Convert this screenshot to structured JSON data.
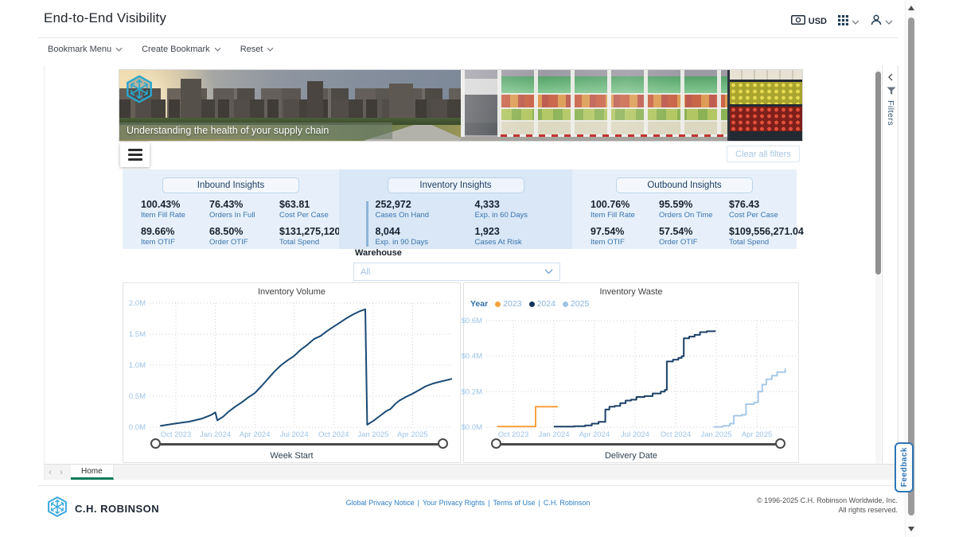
{
  "header": {
    "title": "End-to-End Visibility",
    "currency": "USD"
  },
  "toolbar": {
    "items": [
      "Bookmark Menu",
      "Create Bookmark",
      "Reset"
    ]
  },
  "banner": {
    "caption": "Understanding the health of your supply chain"
  },
  "controls": {
    "clear_filters": "Clear all filters"
  },
  "insights": {
    "inbound": {
      "title": "Inbound Insights",
      "metrics": [
        {
          "value": "100.43%",
          "label": "Item Fill Rate"
        },
        {
          "value": "76.43%",
          "label": "Orders In Full"
        },
        {
          "value": "$63.81",
          "label": "Cost Per Case"
        },
        {
          "value": "89.66%",
          "label": "Item OTIF"
        },
        {
          "value": "68.50%",
          "label": "Order OTIF"
        },
        {
          "value": "$131,275,120.00",
          "label": "Total Spend"
        }
      ]
    },
    "inventory": {
      "title": "Inventory Insights",
      "metrics": [
        {
          "value": "252,972",
          "label": "Cases On Hand"
        },
        {
          "value": "4,333",
          "label": "Exp. in 60 Days"
        },
        {
          "value": "8,044",
          "label": "Exp. in 90 Days"
        },
        {
          "value": "1,923",
          "label": "Cases At Risk"
        }
      ]
    },
    "outbound": {
      "title": "Outbound Insights",
      "metrics": [
        {
          "value": "100.76%",
          "label": "Item Fill Rate"
        },
        {
          "value": "95.59%",
          "label": "Orders On Time"
        },
        {
          "value": "$76.43",
          "label": "Cost Per Case"
        },
        {
          "value": "97.54%",
          "label": "Item OTIF"
        },
        {
          "value": "57.54%",
          "label": "Order OTIF"
        },
        {
          "value": "$109,556,271.04",
          "label": "Total Spend"
        }
      ]
    }
  },
  "warehouse": {
    "label": "Warehouse",
    "value": "All"
  },
  "chart_data": [
    {
      "type": "line",
      "title": "Inventory Volume",
      "xlabel": "Week Start",
      "ylabel": "",
      "x_unit_note": "x = months since Aug 2023",
      "xlim": [
        0,
        23
      ],
      "ylim": [
        0,
        2
      ],
      "x_ticks": [
        "Oct 2023",
        "Jan 2024",
        "Apr 2024",
        "Jul 2024",
        "Oct 2024",
        "Jan 2025",
        "Apr 2025"
      ],
      "x_tick_values": [
        2,
        5,
        8,
        11,
        14,
        17,
        20
      ],
      "y_ticks": [
        "2.0M",
        "1.5M",
        "1.0M",
        "0.5M",
        "0.0M"
      ],
      "y_tick_values": [
        2,
        1.5,
        1,
        0.5,
        0
      ],
      "grid": "dotted",
      "series": [
        {
          "name": "Inventory Volume",
          "color": "#1b4a73",
          "step": false,
          "points": [
            [
              0.8,
              0.02
            ],
            [
              2,
              0.06
            ],
            [
              3,
              0.09
            ],
            [
              4,
              0.14
            ],
            [
              4.7,
              0.2
            ],
            [
              5.0,
              0.24
            ],
            [
              5.15,
              0.11
            ],
            [
              5.6,
              0.17
            ],
            [
              6,
              0.25
            ],
            [
              6.5,
              0.33
            ],
            [
              7,
              0.4
            ],
            [
              7.5,
              0.48
            ],
            [
              8,
              0.55
            ],
            [
              8.5,
              0.66
            ],
            [
              9,
              0.78
            ],
            [
              9.5,
              0.9
            ],
            [
              10,
              1.0
            ],
            [
              10.5,
              1.08
            ],
            [
              11,
              1.15
            ],
            [
              11.5,
              1.25
            ],
            [
              12,
              1.33
            ],
            [
              12.5,
              1.42
            ],
            [
              13,
              1.47
            ],
            [
              13.5,
              1.55
            ],
            [
              14,
              1.62
            ],
            [
              14.5,
              1.69
            ],
            [
              15,
              1.76
            ],
            [
              15.5,
              1.82
            ],
            [
              16,
              1.87
            ],
            [
              16.4,
              1.9
            ],
            [
              16.55,
              0.04
            ],
            [
              17,
              0.1
            ],
            [
              17.5,
              0.18
            ],
            [
              18,
              0.26
            ],
            [
              18.3,
              0.29
            ],
            [
              18.7,
              0.38
            ],
            [
              19,
              0.43
            ],
            [
              19.5,
              0.49
            ],
            [
              20,
              0.54
            ],
            [
              20.5,
              0.6
            ],
            [
              21,
              0.66
            ],
            [
              21.5,
              0.7
            ],
            [
              22,
              0.73
            ],
            [
              23,
              0.78
            ]
          ]
        }
      ]
    },
    {
      "type": "line",
      "title": "Inventory Waste",
      "xlabel": "Delivery Date",
      "ylabel": "",
      "x_unit_note": "x = months since Aug 2023",
      "xlim": [
        0,
        23
      ],
      "ylim": [
        0,
        0.6
      ],
      "x_ticks": [
        "Oct 2023",
        "Jan 2024",
        "Apr 2024",
        "Jul 2024",
        "Oct 2024",
        "Jan 2025",
        "Apr 2025"
      ],
      "x_tick_values": [
        2,
        5,
        8,
        11,
        14,
        17,
        20
      ],
      "y_ticks": [
        "$0.6M",
        "$0.4M",
        "$0.2M",
        "$0.0M"
      ],
      "y_tick_values": [
        0.6,
        0.4,
        0.2,
        0
      ],
      "grid": "dotted",
      "legend": {
        "title": "Year",
        "entries": [
          {
            "label": "2023",
            "color": "#f9a13c"
          },
          {
            "label": "2024",
            "color": "#14355a"
          },
          {
            "label": "2025",
            "color": "#9dc3e6"
          }
        ]
      },
      "series": [
        {
          "name": "2023",
          "color": "#f9a13c",
          "step": true,
          "points": [
            [
              0.8,
              0.004
            ],
            [
              3.6,
              0.004
            ],
            [
              3.65,
              0.115
            ],
            [
              5.3,
              0.115
            ]
          ]
        },
        {
          "name": "2024",
          "color": "#1b4066",
          "step": true,
          "points": [
            [
              5.0,
              0.003
            ],
            [
              6.5,
              0.006
            ],
            [
              7.3,
              0.01
            ],
            [
              7.8,
              0.02
            ],
            [
              8.3,
              0.03
            ],
            [
              8.8,
              0.1
            ],
            [
              9.1,
              0.115
            ],
            [
              9.5,
              0.12
            ],
            [
              9.9,
              0.135
            ],
            [
              10.3,
              0.15
            ],
            [
              10.7,
              0.155
            ],
            [
              11.1,
              0.17
            ],
            [
              11.7,
              0.175
            ],
            [
              12.3,
              0.19
            ],
            [
              12.9,
              0.2
            ],
            [
              13.2,
              0.21
            ],
            [
              13.35,
              0.37
            ],
            [
              13.8,
              0.38
            ],
            [
              14.2,
              0.39
            ],
            [
              14.45,
              0.4
            ],
            [
              14.6,
              0.5
            ],
            [
              15,
              0.51
            ],
            [
              15.4,
              0.52
            ],
            [
              15.8,
              0.535
            ],
            [
              16.3,
              0.54
            ],
            [
              16.9,
              0.545
            ]
          ]
        },
        {
          "name": "2025",
          "color": "#a8c9e8",
          "step": true,
          "points": [
            [
              16.8,
              0.002
            ],
            [
              17.5,
              0.008
            ],
            [
              18.0,
              0.02
            ],
            [
              18.3,
              0.065
            ],
            [
              18.9,
              0.07
            ],
            [
              19.2,
              0.13
            ],
            [
              19.8,
              0.14
            ],
            [
              20.1,
              0.2
            ],
            [
              20.4,
              0.24
            ],
            [
              20.7,
              0.27
            ],
            [
              21.1,
              0.29
            ],
            [
              21.5,
              0.31
            ],
            [
              22.1,
              0.33
            ]
          ]
        }
      ]
    }
  ],
  "filters_pane": {
    "label": "Filters"
  },
  "tabs": {
    "active": "Home"
  },
  "feedback": {
    "label": "Feedback"
  },
  "footer": {
    "brand": "C.H. ROBINSON",
    "links": [
      "Global Privacy Notice",
      "Your Privacy Rights",
      "Terms of Use",
      "C.H. Robinson"
    ],
    "separator": "|",
    "copyright_line1": "© 1996-2025 C.H. Robinson Worldwide, Inc.",
    "copyright_line2": "All rights reserved."
  }
}
